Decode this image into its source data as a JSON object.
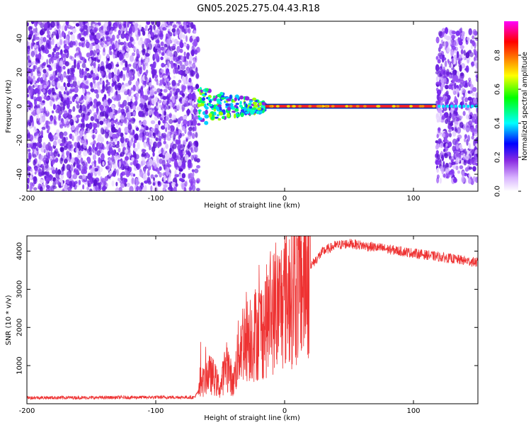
{
  "title": "GN05.2025.275.04.43.R18",
  "chart_data": [
    {
      "type": "heatmap",
      "xlabel": "Height of straight line (km)",
      "ylabel": "Frequency (Hz)",
      "xlim": [
        -200,
        150
      ],
      "ylim": [
        -50,
        50
      ],
      "xticks": [
        -200,
        -100,
        0,
        100
      ],
      "yticks": [
        -40,
        -20,
        0,
        20,
        40
      ],
      "colorbar": {
        "label": "Normalized spectral amplitude",
        "range": [
          0,
          1
        ],
        "ticks": [
          0.0,
          0.2,
          0.4,
          0.6,
          0.8
        ],
        "colors": [
          "#ffffff",
          "#d9b3ff",
          "#8a2be2",
          "#0000ff",
          "#00ffff",
          "#00ff00",
          "#ffff00",
          "#ff8000",
          "#ff0000",
          "#ff00ff"
        ]
      },
      "regions": [
        {
          "name": "noise",
          "x": [
            -200,
            -67
          ],
          "f_range": [
            -50,
            50
          ],
          "amplitude": 0.12
        },
        {
          "name": "transition",
          "x": [
            -67,
            -15
          ],
          "f_range": [
            -6,
            6
          ],
          "amplitude": 0.45
        },
        {
          "name": "carrier",
          "x": [
            -15,
            118
          ],
          "f": 0,
          "amplitude": 0.9
        },
        {
          "name": "noise-carrier",
          "x": [
            118,
            150
          ],
          "f_range": [
            -45,
            45
          ],
          "amplitude": 0.15
        }
      ]
    },
    {
      "type": "line",
      "xlabel": "Height of straight line (km)",
      "ylabel": "SNR (10 * v/v)",
      "xlim": [
        -200,
        150
      ],
      "ylim": [
        0,
        4400
      ],
      "xticks": [
        -200,
        -100,
        0,
        100
      ],
      "yticks": [
        1000,
        2000,
        3000,
        4000
      ],
      "color": "#ee3333",
      "series": [
        {
          "x": [
            -200,
            -150,
            -100,
            -70,
            -65,
            -60,
            -55,
            -50,
            -45,
            -40,
            -35,
            -30,
            -25,
            -20,
            -15,
            -10,
            -5,
            0,
            5,
            10,
            15,
            20,
            25,
            30,
            40,
            50,
            60,
            80,
            100,
            120,
            140,
            150
          ],
          "values": [
            160,
            160,
            170,
            170,
            400,
            800,
            700,
            400,
            1100,
            500,
            1500,
            1800,
            1800,
            1900,
            2100,
            2400,
            2500,
            2800,
            3000,
            3100,
            3300,
            3600,
            3800,
            4000,
            4150,
            4200,
            4150,
            4050,
            3950,
            3850,
            3750,
            3700
          ]
        }
      ]
    }
  ]
}
